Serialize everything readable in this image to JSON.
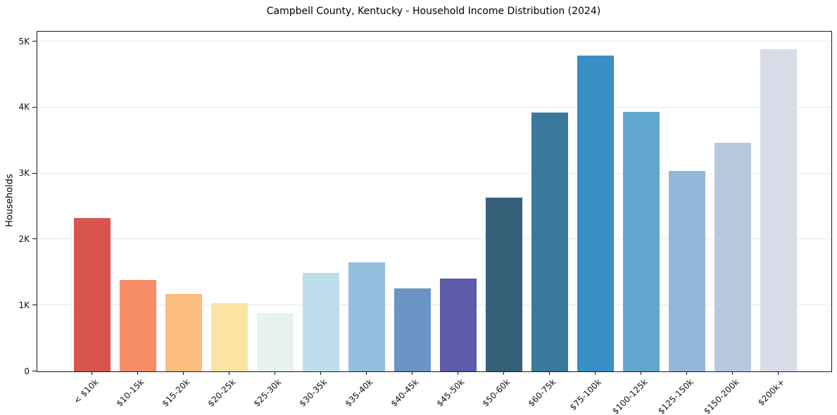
{
  "chart_data": {
    "type": "bar",
    "title": "Campbell County, Kentucky - Household Income Distribution (2024)",
    "xlabel": "",
    "ylabel": "Households",
    "categories": [
      "< $10k",
      "$10-15k",
      "$15-20k",
      "$20-25k",
      "$25-30k",
      "$30-35k",
      "$35-40k",
      "$40-45k",
      "$45-50k",
      "$50-60k",
      "$60-75k",
      "$75-100k",
      "$100-125k",
      "$125-150k",
      "$150-200k",
      "$200k+"
    ],
    "values": [
      2320,
      1390,
      1170,
      1030,
      890,
      1490,
      1650,
      1255,
      1410,
      2630,
      3925,
      4785,
      3935,
      3040,
      3465,
      4885
    ],
    "bar_colors": [
      "#d8544e",
      "#f68d68",
      "#fbbc7e",
      "#fce3a4",
      "#e7f2f0",
      "#bfdeeb",
      "#93bedd",
      "#6b93c3",
      "#5c5caa",
      "#365f78",
      "#38799c",
      "#398ec4",
      "#61a7cd",
      "#91b8d8",
      "#b6c9df",
      "#d8dbe8"
    ],
    "ylim": [
      0,
      5150
    ],
    "yticks": [
      {
        "value": 0,
        "label": "0"
      },
      {
        "value": 1000,
        "label": "1K"
      },
      {
        "value": 2000,
        "label": "2K"
      },
      {
        "value": 3000,
        "label": "3K"
      },
      {
        "value": 4000,
        "label": "4K"
      },
      {
        "value": 5000,
        "label": "5K"
      }
    ],
    "grid": "horizontal",
    "legend": "none",
    "background_color": "#ffffff",
    "spine_color": "#1a1a1a",
    "gridline_color": "#e7e7e7"
  }
}
